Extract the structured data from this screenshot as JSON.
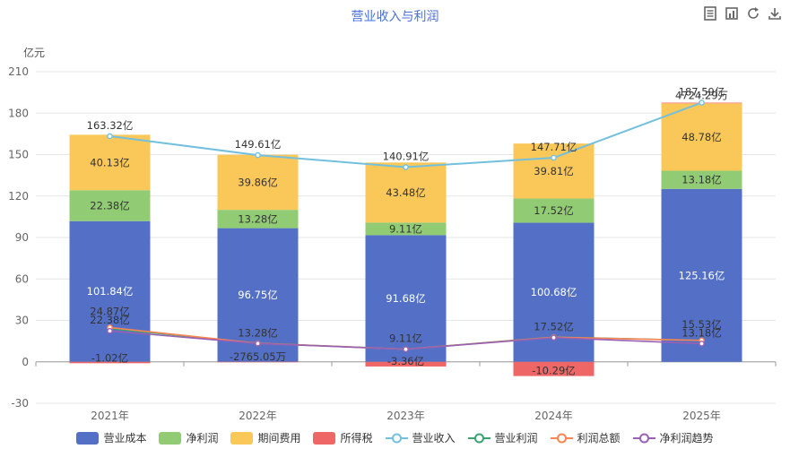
{
  "title": "营业收入与利润",
  "unit": "亿元",
  "toolbar": [
    {
      "name": "data-view-icon",
      "label": "数据视图"
    },
    {
      "name": "bar-switch-icon",
      "label": "柱状图"
    },
    {
      "name": "restore-icon",
      "label": "还原"
    },
    {
      "name": "download-icon",
      "label": "保存为图片"
    }
  ],
  "chart_data": {
    "type": "bar",
    "categories": [
      "2021年",
      "2022年",
      "2023年",
      "2024年",
      "2025年"
    ],
    "ylim": [
      -30,
      210
    ],
    "yticks": [
      -30,
      0,
      30,
      60,
      90,
      120,
      150,
      180,
      210
    ],
    "grid": true,
    "legend_position": "bottom",
    "stacked_series": [
      {
        "name": "营业成本",
        "color": "#5470c6",
        "values": [
          101.84,
          96.75,
          91.68,
          100.68,
          125.16
        ],
        "labels": [
          "101.84亿",
          "96.75亿",
          "91.68亿",
          "100.68亿",
          "125.16亿"
        ]
      },
      {
        "name": "净利润",
        "color": "#91cc75",
        "values": [
          22.38,
          13.28,
          9.11,
          17.52,
          13.18
        ],
        "labels": [
          "22.38亿",
          "13.28亿",
          "9.11亿",
          "17.52亿",
          "13.18亿"
        ]
      },
      {
        "name": "期间费用",
        "color": "#fac858",
        "values": [
          40.13,
          39.86,
          43.48,
          39.81,
          48.78
        ],
        "labels": [
          "40.13亿",
          "39.86亿",
          "43.48亿",
          "39.81亿",
          "48.78亿"
        ]
      },
      {
        "name": "所得税",
        "color": "#ee6666",
        "values": [
          -1.02,
          -0.2765,
          -3.36,
          -10.29,
          0.4724
        ],
        "labels": [
          "-1.02亿",
          "-2765.05万",
          "-3.36亿",
          "-10.29亿",
          "4724.29万"
        ]
      }
    ],
    "line_series": [
      {
        "name": "营业收入",
        "color": "#73c0de",
        "values": [
          163.32,
          149.61,
          140.91,
          147.71,
          187.59
        ],
        "labels": [
          "163.32亿",
          "149.61亿",
          "140.91亿",
          "147.71亿",
          "187.59亿"
        ]
      },
      {
        "name": "营业利润",
        "color": "#3ba272",
        "values": [
          24.0,
          13.5,
          9.2,
          18.0,
          15.5
        ],
        "labels": [
          "",
          "",
          "",
          "",
          ""
        ]
      },
      {
        "name": "利润总额",
        "color": "#fc8452",
        "values": [
          24.87,
          13.4,
          9.15,
          17.8,
          15.53
        ],
        "labels": [
          "24.87亿",
          "",
          "",
          "",
          "15.53亿"
        ]
      },
      {
        "name": "净利润趋势",
        "color": "#9a60b4",
        "values": [
          22.38,
          13.28,
          9.11,
          17.52,
          13.18
        ],
        "labels": [
          "22.38亿",
          "13.28亿",
          "9.11亿",
          "17.52亿",
          "13.18亿"
        ]
      }
    ]
  }
}
